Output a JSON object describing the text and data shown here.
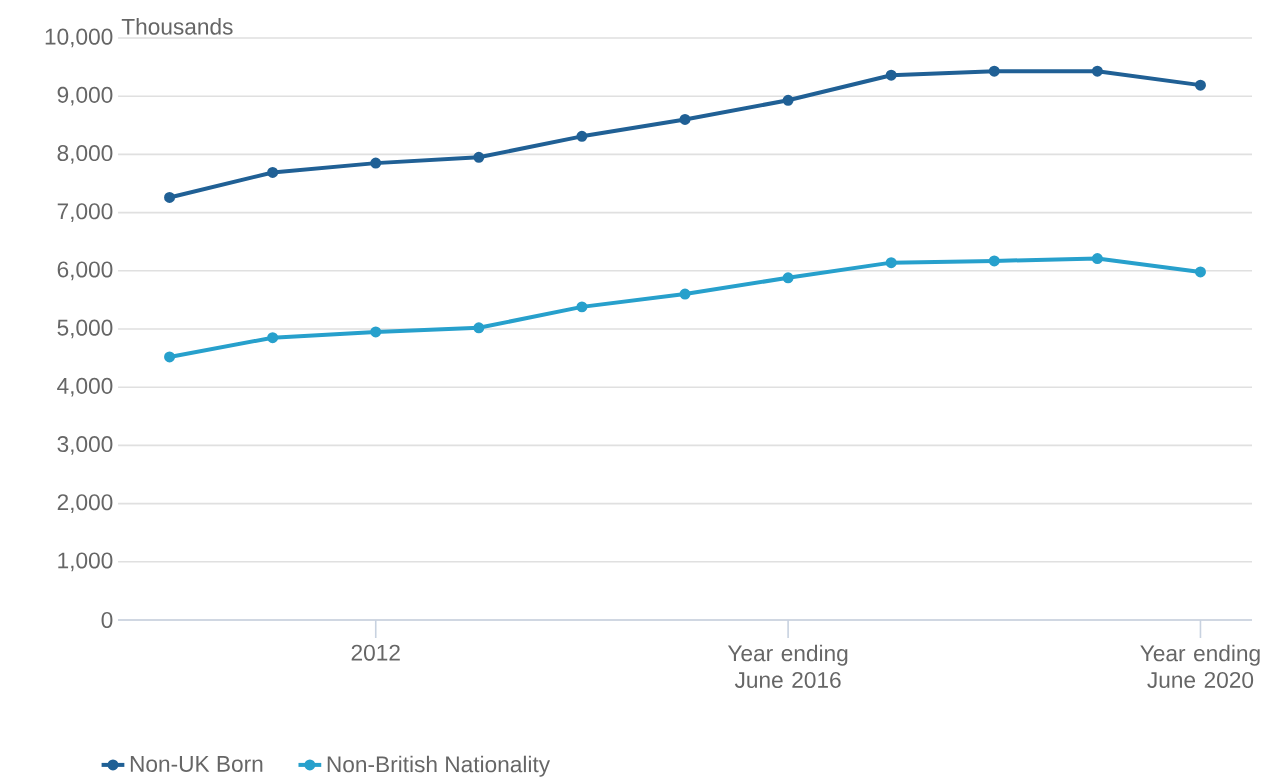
{
  "chart_data": {
    "type": "line",
    "ylabel": "Thousands",
    "categories": [
      null,
      null,
      "2012",
      null,
      null,
      null,
      "Year ending June 2016",
      null,
      null,
      null,
      "Year ending June 2020"
    ],
    "series": [
      {
        "name": "Non-UK Born",
        "color": "#206095",
        "values": [
          7260,
          7690,
          7850,
          7950,
          8310,
          8600,
          8930,
          9360,
          9430,
          9430,
          9190
        ]
      },
      {
        "name": "Non-British Nationality",
        "color": "#27a0cc",
        "values": [
          4520,
          4850,
          4950,
          5020,
          5380,
          5600,
          5880,
          6140,
          6170,
          6210,
          5980
        ]
      }
    ],
    "ylim": [
      0,
      10000
    ],
    "yticks": [
      0,
      {
        "value": 1000,
        "label": "1,000"
      },
      {
        "value": 2000,
        "label": "2,000"
      },
      {
        "value": 3000,
        "label": "3,000"
      },
      {
        "value": 4000,
        "label": "4,000"
      },
      {
        "value": 5000,
        "label": "5,000"
      },
      {
        "value": 6000,
        "label": "6,000"
      },
      {
        "value": 7000,
        "label": "7,000"
      },
      {
        "value": 8000,
        "label": "8,000"
      },
      {
        "value": 9000,
        "label": "9,000"
      },
      {
        "value": 10000,
        "label": "10,000"
      }
    ],
    "grid": "y",
    "legend": "bottom",
    "marker": "circle",
    "line_style": "solid"
  }
}
